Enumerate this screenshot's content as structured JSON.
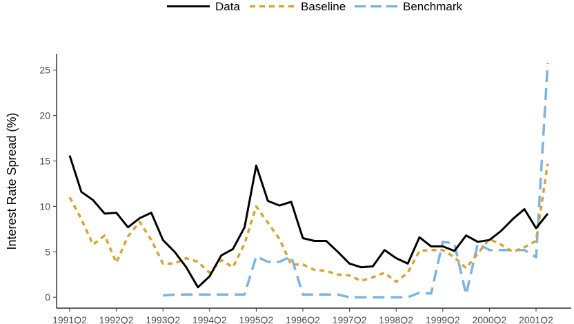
{
  "chart_data": {
    "type": "line",
    "title": "",
    "xlabel": "",
    "ylabel": "Interest Rate Spread (%)",
    "ylim": [
      -1.2,
      26.8
    ],
    "yticks": [
      0,
      5,
      10,
      15,
      20,
      25
    ],
    "grid": false,
    "legend_position": "top",
    "x": [
      "1991Q2",
      "1991Q3",
      "1991Q4",
      "1992Q1",
      "1992Q2",
      "1992Q3",
      "1992Q4",
      "1993Q1",
      "1993Q2",
      "1993Q3",
      "1993Q4",
      "1994Q1",
      "1994Q2",
      "1994Q3",
      "1994Q4",
      "1995Q1",
      "1995Q2",
      "1995Q3",
      "1995Q4",
      "1996Q1",
      "1996Q2",
      "1996Q3",
      "1996Q4",
      "1997Q1",
      "1997Q2",
      "1997Q3",
      "1997Q4",
      "1998Q1",
      "1998Q2",
      "1998Q3",
      "1998Q4",
      "1999Q1",
      "1999Q2",
      "1999Q3",
      "1999Q4",
      "2000Q1",
      "2000Q2",
      "2000Q3",
      "2000Q4",
      "2001Q1",
      "2001Q2",
      "2001Q3"
    ],
    "xtick_labels": [
      "1991Q2",
      "1992Q2",
      "1993Q2",
      "1994Q2",
      "1995Q2",
      "1996Q2",
      "1997Q2",
      "1998Q2",
      "1999Q2",
      "2000Q2",
      "2001Q2"
    ],
    "series": [
      {
        "name": "Data",
        "color": "#000000",
        "dash": "solid",
        "values": [
          15.6,
          11.6,
          10.7,
          9.2,
          9.3,
          7.7,
          8.7,
          9.3,
          6.3,
          5.0,
          3.3,
          1.1,
          2.3,
          4.6,
          5.3,
          7.7,
          14.5,
          10.6,
          10.1,
          10.5,
          6.5,
          6.2,
          6.2,
          5.0,
          3.7,
          3.3,
          3.4,
          5.2,
          4.3,
          3.7,
          6.6,
          5.6,
          5.6,
          5.1,
          6.8,
          6.1,
          6.3,
          7.3,
          8.6,
          9.7,
          7.6,
          9.2
        ]
      },
      {
        "name": "Baseline",
        "color": "#D4A537",
        "dash": "dotted",
        "values": [
          11.0,
          8.6,
          5.8,
          6.8,
          3.8,
          6.7,
          8.3,
          6.3,
          3.7,
          3.7,
          4.3,
          3.9,
          2.7,
          4.1,
          3.3,
          5.9,
          10.0,
          8.2,
          6.4,
          3.6,
          3.6,
          3.0,
          2.9,
          2.5,
          2.4,
          1.8,
          2.2,
          2.7,
          1.7,
          2.7,
          5.1,
          5.2,
          5.2,
          4.4,
          3.2,
          4.8,
          6.4,
          5.8,
          5.0,
          5.5,
          6.2,
          14.7
        ]
      },
      {
        "name": "Benchmark",
        "color": "#7DB3E3",
        "dash": "dashed",
        "values": [
          null,
          null,
          null,
          null,
          null,
          null,
          null,
          null,
          0.2,
          0.3,
          0.3,
          0.3,
          0.3,
          0.3,
          0.3,
          0.3,
          4.5,
          3.9,
          3.9,
          4.5,
          0.3,
          0.3,
          0.3,
          0.3,
          0.0,
          0.0,
          0.0,
          0.0,
          0.0,
          0.0,
          0.5,
          0.4,
          6.1,
          5.9,
          0.3,
          5.9,
          5.2,
          5.2,
          5.2,
          5.2,
          4.4,
          25.8
        ]
      }
    ]
  }
}
